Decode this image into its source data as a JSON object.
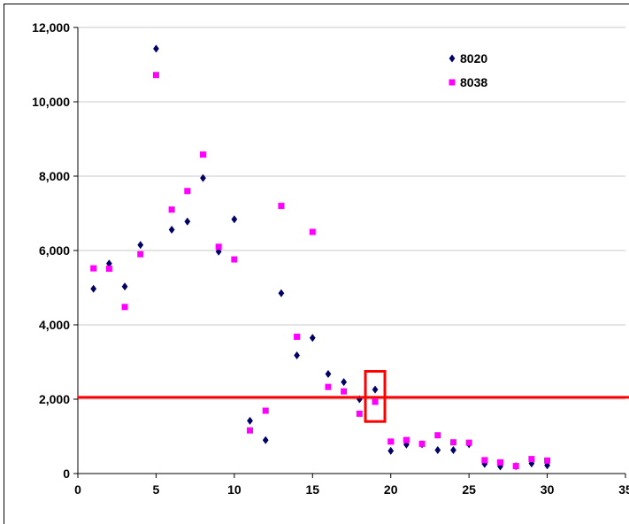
{
  "chart_data": {
    "type": "scatter",
    "title": "",
    "xlabel": "",
    "ylabel": "",
    "xlim": [
      0,
      35
    ],
    "ylim": [
      0,
      12000
    ],
    "xticks": [
      0,
      5,
      10,
      15,
      20,
      25,
      30,
      35
    ],
    "yticks": [
      0,
      2000,
      4000,
      6000,
      8000,
      10000,
      12000
    ],
    "xtick_labels": [
      "0",
      "5",
      "10",
      "15",
      "20",
      "25",
      "30",
      "35"
    ],
    "ytick_labels": [
      "0",
      "2,000",
      "4,000",
      "6,000",
      "8,000",
      "10,000",
      "12,000"
    ],
    "grid": "horizontal",
    "legend_position": "top-right",
    "series": [
      {
        "name": "8020",
        "marker": "diamond",
        "color": "#000066",
        "x": [
          1,
          2,
          3,
          4,
          5,
          6,
          7,
          8,
          9,
          10,
          11,
          12,
          13,
          14,
          15,
          16,
          17,
          18,
          19,
          20,
          21,
          22,
          23,
          24,
          25,
          26,
          27,
          28,
          29,
          30
        ],
        "y": [
          4970,
          5650,
          5030,
          6150,
          11430,
          6560,
          6780,
          7950,
          5970,
          6840,
          1420,
          900,
          4850,
          3180,
          3650,
          2680,
          2460,
          2000,
          2260,
          610,
          780,
          790,
          630,
          630,
          790,
          260,
          190,
          200,
          270,
          220
        ]
      },
      {
        "name": "8038",
        "marker": "square",
        "color": "#ff00ff",
        "x": [
          1,
          2,
          3,
          4,
          5,
          6,
          7,
          8,
          9,
          10,
          11,
          12,
          13,
          14,
          15,
          16,
          17,
          18,
          19,
          20,
          21,
          22,
          23,
          24,
          25,
          26,
          27,
          28,
          29,
          30
        ],
        "y": [
          5520,
          5510,
          4480,
          5900,
          10720,
          7100,
          7600,
          8580,
          6100,
          5760,
          1160,
          1690,
          7200,
          3680,
          6500,
          2330,
          2210,
          1610,
          1930,
          860,
          900,
          800,
          1030,
          840,
          830,
          360,
          300,
          200,
          390,
          350
        ]
      }
    ],
    "reference_line": {
      "y": 2050,
      "color": "#ff0000"
    },
    "highlight_box": {
      "x_center": 19,
      "y_min": 1400,
      "y_max": 2750,
      "color": "#ff0000"
    }
  }
}
